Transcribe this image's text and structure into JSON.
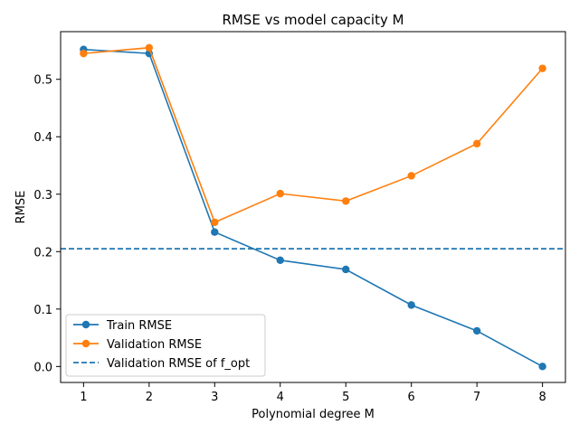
{
  "chart_data": {
    "type": "line",
    "title": "RMSE vs model capacity M",
    "xlabel": "Polynomial degree M",
    "ylabel": "RMSE",
    "x": [
      1,
      2,
      3,
      4,
      5,
      6,
      7,
      8
    ],
    "xlim": [
      0.65,
      8.35
    ],
    "ylim": [
      -0.0278,
      0.583
    ],
    "xticks": [
      "1",
      "2",
      "3",
      "4",
      "5",
      "6",
      "7",
      "8"
    ],
    "yticks": [
      "0.0",
      "0.1",
      "0.2",
      "0.3",
      "0.4",
      "0.5"
    ],
    "series": [
      {
        "name": "Train RMSE",
        "color": "#1f77b4",
        "values": [
          0.552,
          0.545,
          0.234,
          0.185,
          0.169,
          0.107,
          0.062,
          0.0
        ]
      },
      {
        "name": "Validation RMSE",
        "color": "#ff7f0e",
        "values": [
          0.545,
          0.555,
          0.251,
          0.301,
          0.288,
          0.332,
          0.388,
          0.519
        ]
      }
    ],
    "reference_line": {
      "name": "Validation RMSE of f_opt",
      "color": "#1f77b4",
      "style": "dashed",
      "y": 0.205
    },
    "grid": false,
    "legend_position": "lower-left"
  }
}
